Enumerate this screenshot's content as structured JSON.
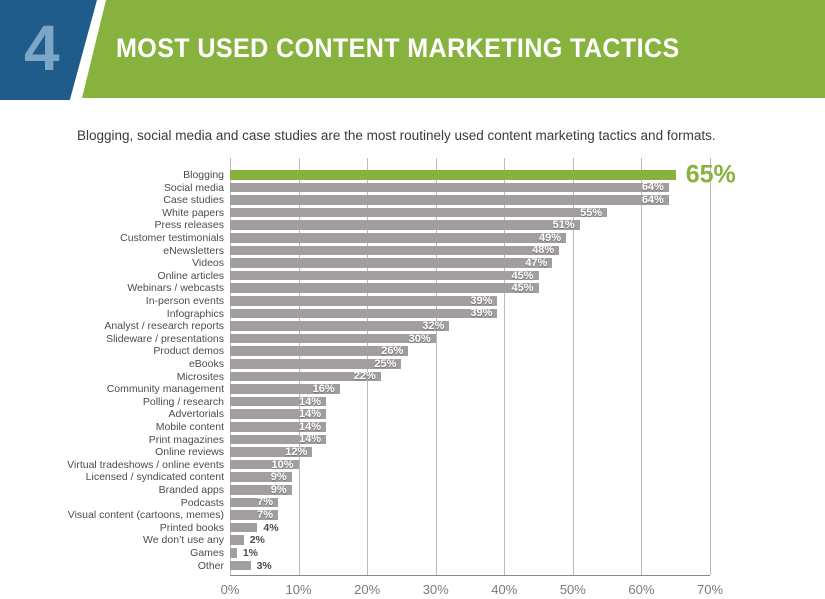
{
  "header": {
    "number": "4",
    "title": "MOST USED CONTENT MARKETING TACTICS"
  },
  "subtitle": "Blogging, social media and case studies are the most routinely used content marketing tactics and formats.",
  "colors": {
    "accent_green": "#88B23E",
    "bar_gray": "#A29E9E",
    "header_blue": "#205C8B",
    "number_light_blue": "#7CA6C6",
    "gridline": "#bdbaba",
    "axis_line": "#8a8787",
    "label_dark": "#4c4c4c",
    "tick_gray": "#7b7b7b"
  },
  "chart_data": {
    "type": "bar",
    "orientation": "horizontal",
    "title": "Most Used Content Marketing Tactics",
    "xlabel": "",
    "ylabel": "",
    "xlim": [
      0,
      70
    ],
    "grid": true,
    "legend": false,
    "value_suffix": "%",
    "highlight_index": 0,
    "highlight_value_label": "65%",
    "categories": [
      "Blogging",
      "Social media",
      "Case studies",
      "White papers",
      "Press releases",
      "Customer testimonials",
      "eNewsletters",
      "Videos",
      "Online articles",
      "Webinars / webcasts",
      "In-person events",
      "Infographics",
      "Analyst / research reports",
      "Slideware / presentations",
      "Product demos",
      "eBooks",
      "Microsites",
      "Community management",
      "Polling / research",
      "Advertorials",
      "Mobile content",
      "Print magazines",
      "Online reviews",
      "Virtual tradeshows / online events",
      "Licensed / syndicated content",
      "Branded apps",
      "Podcasts",
      "Visual content (cartoons, memes)",
      "Printed books",
      "We don’t use any",
      "Games",
      "Other"
    ],
    "values": [
      65,
      64,
      64,
      55,
      51,
      49,
      48,
      47,
      45,
      45,
      39,
      39,
      32,
      30,
      26,
      25,
      22,
      16,
      14,
      14,
      14,
      14,
      12,
      10,
      9,
      9,
      7,
      7,
      4,
      2,
      1,
      3
    ],
    "x_ticks": [
      "0%",
      "10%",
      "20%",
      "30%",
      "40%",
      "50%",
      "60%",
      "70%"
    ]
  }
}
